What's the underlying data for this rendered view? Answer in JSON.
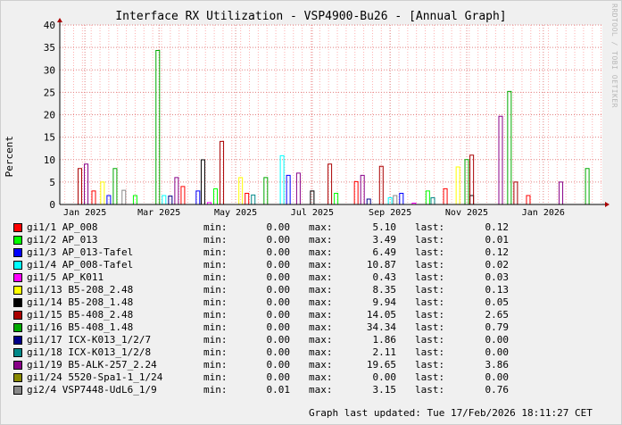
{
  "title": "Interface RX Utilization - VSP4900-Bu26 - [Annual Graph]",
  "watermark": "RRDTOOL / TOBI OETIKER",
  "updated": "Graph last updated: Tue 17/Feb/2026 18:11:27 CET",
  "legend_labels": {
    "min": "min:",
    "max": "max:",
    "last": "last:"
  },
  "chart_data": {
    "type": "line",
    "ylabel": "Percent",
    "ylim": [
      0,
      40
    ],
    "yticks": [
      0,
      5,
      10,
      15,
      20,
      25,
      30,
      35,
      40
    ],
    "x_range": [
      "2024-12-12",
      "2026-02-17"
    ],
    "x_ticks": [
      {
        "label": "Jan 2025",
        "date": "2025-01-01"
      },
      {
        "label": "Mar 2025",
        "date": "2025-03-01"
      },
      {
        "label": "May 2025",
        "date": "2025-05-01"
      },
      {
        "label": "Jul 2025",
        "date": "2025-07-01"
      },
      {
        "label": "Sep 2025",
        "date": "2025-09-01"
      },
      {
        "label": "Nov 2025",
        "date": "2025-11-01"
      },
      {
        "label": "Jan 2026",
        "date": "2026-01-01"
      }
    ],
    "grid": true,
    "series": [
      {
        "name": "gi1/1 AP_008",
        "color": "#ff0000",
        "min": "0.00",
        "max": "5.10",
        "last": "0.12",
        "spikes": [
          [
            "2025-01-08",
            3.0
          ],
          [
            "2025-03-20",
            4.0
          ],
          [
            "2025-05-10",
            2.5
          ],
          [
            "2025-08-05",
            5.1
          ],
          [
            "2025-10-15",
            3.5
          ],
          [
            "2025-12-20",
            2.0
          ]
        ]
      },
      {
        "name": "gi1/2 AP_013",
        "color": "#00ff00",
        "min": "0.00",
        "max": "3.49",
        "last": "0.01",
        "spikes": [
          [
            "2025-02-10",
            2.0
          ],
          [
            "2025-04-15",
            3.49
          ],
          [
            "2025-07-20",
            2.5
          ],
          [
            "2025-10-01",
            3.0
          ]
        ]
      },
      {
        "name": "gi1/3 AP_013-Tafel",
        "color": "#0000ff",
        "min": "0.00",
        "max": "6.49",
        "last": "0.12",
        "spikes": [
          [
            "2025-01-20",
            2.0
          ],
          [
            "2025-04-01",
            3.0
          ],
          [
            "2025-06-12",
            6.49
          ],
          [
            "2025-09-10",
            2.5
          ]
        ]
      },
      {
        "name": "gi1/4 AP_008-Tafel",
        "color": "#00ffff",
        "min": "0.00",
        "max": "10.87",
        "last": "0.02",
        "spikes": [
          [
            "2025-06-07",
            10.87
          ],
          [
            "2025-03-05",
            2.0
          ],
          [
            "2025-09-01",
            1.5
          ]
        ]
      },
      {
        "name": "gi1/5 AP_K011",
        "color": "#ff00ff",
        "min": "0.00",
        "max": "0.43",
        "last": "0.03",
        "spikes": [
          [
            "2025-04-10",
            0.43
          ],
          [
            "2025-09-20",
            0.3
          ]
        ]
      },
      {
        "name": "gi1/13 B5-208_2.48",
        "color": "#ffff00",
        "min": "0.00",
        "max": "8.35",
        "last": "0.13",
        "spikes": [
          [
            "2025-01-15",
            5.0
          ],
          [
            "2025-05-05",
            6.0
          ],
          [
            "2025-10-25",
            8.35
          ]
        ]
      },
      {
        "name": "gi1/14 B5-208_1.48",
        "color": "#000000",
        "min": "0.00",
        "max": "9.94",
        "last": "0.05",
        "spikes": [
          [
            "2025-04-05",
            9.94
          ],
          [
            "2025-07-01",
            3.0
          ],
          [
            "2025-11-05",
            2.0
          ]
        ]
      },
      {
        "name": "gi1/15 B5-408_2.48",
        "color": "#aa0000",
        "min": "0.00",
        "max": "14.05",
        "last": "2.65",
        "spikes": [
          [
            "2024-12-28",
            8.0
          ],
          [
            "2025-04-20",
            14.05
          ],
          [
            "2025-07-15",
            9.0
          ],
          [
            "2025-08-25",
            8.5
          ],
          [
            "2025-11-05",
            11.0
          ],
          [
            "2025-12-10",
            5.0
          ]
        ]
      },
      {
        "name": "gi1/16 B5-408_1.48",
        "color": "#00aa00",
        "min": "0.00",
        "max": "34.34",
        "last": "0.79",
        "spikes": [
          [
            "2025-01-25",
            8.0
          ],
          [
            "2025-02-28",
            34.34
          ],
          [
            "2025-05-25",
            6.0
          ],
          [
            "2025-11-01",
            10.0
          ],
          [
            "2025-12-05",
            25.2
          ],
          [
            "2026-02-05",
            8.0
          ]
        ]
      },
      {
        "name": "gi1/17 ICX-K013_1/2/7",
        "color": "#000088",
        "min": "0.00",
        "max": "1.86",
        "last": "0.00",
        "spikes": [
          [
            "2025-03-10",
            1.86
          ],
          [
            "2025-08-15",
            1.2
          ]
        ]
      },
      {
        "name": "gi1/18 ICX-K013_1/2/8",
        "color": "#008888",
        "min": "0.00",
        "max": "2.11",
        "last": "0.00",
        "spikes": [
          [
            "2025-05-15",
            2.11
          ],
          [
            "2025-10-05",
            1.5
          ]
        ]
      },
      {
        "name": "gi1/19 B5-ALK-257_2.24",
        "color": "#880088",
        "min": "0.00",
        "max": "19.65",
        "last": "3.86",
        "spikes": [
          [
            "2025-01-02",
            9.0
          ],
          [
            "2025-03-15",
            6.0
          ],
          [
            "2025-06-20",
            7.0
          ],
          [
            "2025-08-10",
            6.5
          ],
          [
            "2025-11-28",
            19.65
          ],
          [
            "2026-01-15",
            5.0
          ]
        ]
      },
      {
        "name": "gi1/24 5520-Spa1-1_1/24",
        "color": "#888800",
        "min": "0.00",
        "max": "0.00",
        "last": "0.00",
        "spikes": []
      },
      {
        "name": "gi2/4 VSP7448-UdL6_1/9",
        "color": "#888888",
        "min": "0.01",
        "max": "3.15",
        "last": "0.76",
        "spikes": [
          [
            "2025-02-01",
            3.15
          ],
          [
            "2025-09-05",
            2.0
          ]
        ]
      }
    ]
  }
}
